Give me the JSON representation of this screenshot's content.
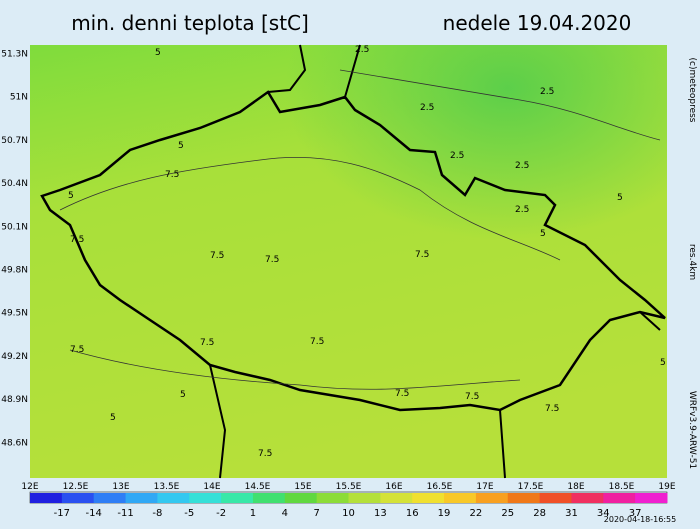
{
  "title": "min. denni teplota [stC]",
  "date": "nedele 19.04.2020",
  "credit": "(c)meteopress",
  "resolution": "res.4km",
  "model": "WRFv3.9-ARW-51",
  "timestamp": "2020-04-18-16:55",
  "lat_labels": [
    "51.3N",
    "51N",
    "50.7N",
    "50.4N",
    "50.1N",
    "49.8N",
    "49.5N",
    "49.2N",
    "48.9N",
    "48.6N"
  ],
  "lon_labels": [
    "12E",
    "12.5E",
    "13E",
    "13.5E",
    "14E",
    "14.5E",
    "15E",
    "15.5E",
    "16E",
    "16.5E",
    "17E",
    "17.5E",
    "18E",
    "18.5E",
    "19E"
  ],
  "scale_labels": [
    "-17",
    "-14",
    "-11",
    "-8",
    "-5",
    "-2",
    "1",
    "4",
    "7",
    "10",
    "13",
    "16",
    "19",
    "22",
    "25",
    "28",
    "31",
    "34",
    "37"
  ],
  "contour_labels": [
    "5",
    "2.5",
    "2.5",
    "2.5",
    "2.5",
    "2.5",
    "2.5",
    "5",
    "5",
    "7.5",
    "5",
    "7.5",
    "7.5",
    "7.5",
    "5",
    "7.5",
    "7.5",
    "7.5",
    "7.5",
    "7.5",
    "7.5",
    "7.5",
    "5",
    "7.5",
    "5",
    "5"
  ]
}
